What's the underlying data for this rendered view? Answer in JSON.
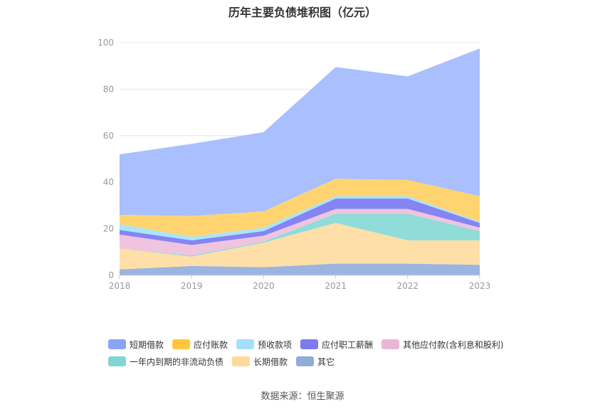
{
  "source": "数据来源：恒生聚源",
  "chart_data": {
    "type": "area",
    "stacked": true,
    "title": "历年主要负债堆积图（亿元）",
    "categories": [
      "2018",
      "2019",
      "2020",
      "2021",
      "2022",
      "2023"
    ],
    "ylim": [
      0,
      100
    ],
    "yticks": [
      0,
      20,
      40,
      60,
      80,
      100
    ],
    "grid": true,
    "legend_position": "bottom",
    "series": [
      {
        "name": "其它",
        "color": "#9bb4e0",
        "values": [
          2.5,
          4.0,
          3.5,
          5.0,
          5.0,
          4.5
        ]
      },
      {
        "name": "长期借款",
        "color": "#ffdfa8",
        "values": [
          9.0,
          4.0,
          10.5,
          17.5,
          10.0,
          10.5
        ]
      },
      {
        "name": "一年内到期的非流动负债",
        "color": "#8fdcd9",
        "values": [
          0.0,
          0.5,
          0.5,
          4.0,
          11.5,
          4.0
        ]
      },
      {
        "name": "其他应付款(含利息和股利)",
        "color": "#f0c4df",
        "values": [
          6.0,
          4.5,
          2.5,
          2.0,
          2.0,
          1.5
        ]
      },
      {
        "name": "应付职工薪酬",
        "color": "#8585f2",
        "values": [
          2.0,
          2.0,
          2.0,
          4.5,
          4.5,
          2.0
        ]
      },
      {
        "name": "预收款项",
        "color": "#a9e4fb",
        "values": [
          2.5,
          1.5,
          1.5,
          1.0,
          1.0,
          0.5
        ]
      },
      {
        "name": "应付账款",
        "color": "#ffd470",
        "values": [
          4.0,
          9.0,
          7.0,
          7.5,
          7.0,
          11.0
        ]
      },
      {
        "name": "短期借款",
        "color": "#a9bffe",
        "values": [
          26.0,
          31.0,
          34.0,
          48.0,
          44.5,
          63.5
        ]
      }
    ],
    "legend_order": [
      "短期借款",
      "应付账款",
      "预收款项",
      "应付职工薪酬",
      "其他应付款(含利息和股利)",
      "一年内到期的非流动负债",
      "长期借款",
      "其它"
    ],
    "legend_colors": {
      "短期借款": "#8aa4f5",
      "应付账款": "#ffc63d",
      "预收款项": "#a5dff9",
      "应付职工薪酬": "#7b7bee",
      "其他应付款(含利息和股利)": "#ebb5d8",
      "一年内到期的非流动负债": "#7fd6d3",
      "长期借款": "#ffd99b",
      "其它": "#8fadd9"
    }
  }
}
